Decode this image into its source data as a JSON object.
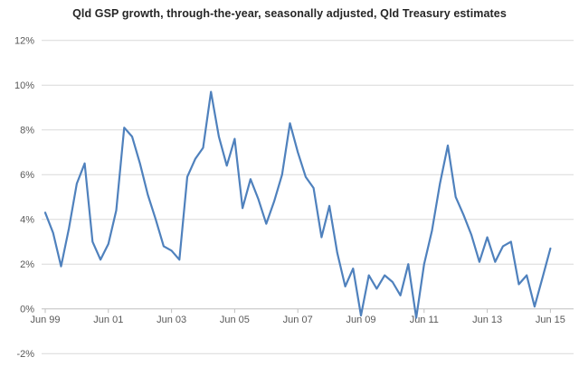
{
  "chart": {
    "title": "Qld GSP growth, through-the-year, seasonally adjusted, Qld Treasury estimates"
  },
  "chart_data": {
    "type": "line",
    "title": "Qld GSP growth, through-the-year, seasonally adjusted, Qld Treasury estimates",
    "series_name": "Qld GSP growth, through-the-year (%), seasonally adjusted",
    "x": [
      "Jun-99",
      "Sep-99",
      "Dec-99",
      "Mar-00",
      "Jun-00",
      "Sep-00",
      "Dec-00",
      "Mar-01",
      "Jun-01",
      "Sep-01",
      "Dec-01",
      "Mar-02",
      "Jun-02",
      "Sep-02",
      "Dec-02",
      "Mar-03",
      "Jun-03",
      "Sep-03",
      "Dec-03",
      "Mar-04",
      "Jun-04",
      "Sep-04",
      "Dec-04",
      "Mar-05",
      "Jun-05",
      "Sep-05",
      "Dec-05",
      "Mar-06",
      "Jun-06",
      "Sep-06",
      "Dec-06",
      "Mar-07",
      "Jun-07",
      "Sep-07",
      "Dec-07",
      "Mar-08",
      "Jun-08",
      "Sep-08",
      "Dec-08",
      "Mar-09",
      "Jun-09",
      "Sep-09",
      "Dec-09",
      "Mar-10",
      "Jun-10",
      "Sep-10",
      "Dec-10",
      "Mar-11",
      "Jun-11",
      "Sep-11",
      "Dec-11",
      "Mar-12",
      "Jun-12",
      "Sep-12",
      "Dec-12",
      "Mar-13",
      "Jun-13",
      "Sep-13",
      "Dec-13",
      "Mar-14",
      "Jun-14",
      "Sep-14",
      "Dec-14",
      "Mar-15",
      "Jun-15"
    ],
    "values": [
      4.3,
      3.4,
      1.9,
      3.6,
      5.6,
      6.5,
      3.0,
      2.2,
      2.9,
      4.4,
      8.1,
      7.7,
      6.5,
      5.1,
      4.0,
      2.8,
      2.6,
      2.2,
      5.9,
      6.7,
      7.2,
      9.7,
      7.7,
      6.4,
      7.6,
      4.5,
      5.8,
      4.9,
      3.8,
      4.8,
      6.0,
      8.3,
      7.0,
      5.9,
      5.4,
      3.2,
      4.6,
      2.5,
      1.0,
      1.8,
      -0.3,
      1.5,
      0.9,
      1.5,
      1.2,
      0.6,
      2.0,
      -0.4,
      2.0,
      3.5,
      5.6,
      7.3,
      5.0,
      4.2,
      3.3,
      2.1,
      3.2,
      2.1,
      2.8,
      3.0,
      1.1,
      1.5,
      0.1,
      1.4,
      2.7
    ],
    "x_tick_labels": [
      "Jun 99",
      "Jun 01",
      "Jun 03",
      "Jun 05",
      "Jun 07",
      "Jun 09",
      "Jun 11",
      "Jun 13",
      "Jun 15"
    ],
    "x_tick_every": 8,
    "y_tick_labels": [
      "12%",
      "10%",
      "8%",
      "6%",
      "4%",
      "2%",
      "0%",
      "-2%"
    ],
    "y_tick_values": [
      12,
      10,
      8,
      6,
      4,
      2,
      0,
      -2
    ],
    "ylim": [
      -2,
      12
    ],
    "xlabel": "",
    "ylabel": "",
    "grid": true,
    "legend": "none",
    "line_color": "#4F81BD",
    "grid_color": "#D9D9D9",
    "axis_color": "#BFBFBF",
    "tick_text_color": "#595959",
    "title_color": "#262626",
    "background_color": "#FFFFFF"
  }
}
